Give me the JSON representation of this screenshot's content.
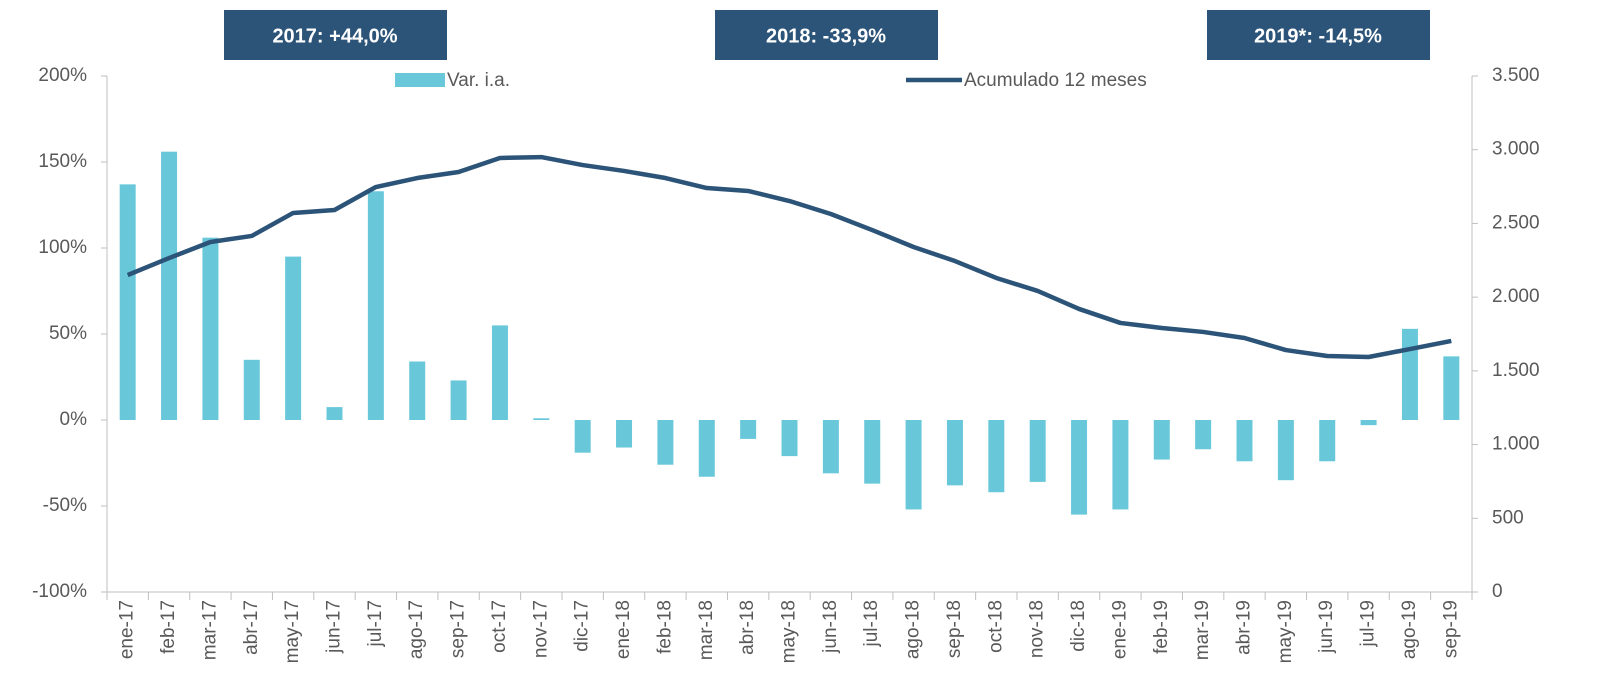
{
  "chart_data": {
    "type": "bar-line",
    "annotations": [
      "2017:  +44,0%",
      "2018:  -33,9%",
      "2019*:  -14,5%"
    ],
    "categories": [
      "ene-17",
      "feb-17",
      "mar-17",
      "abr-17",
      "may-17",
      "jun-17",
      "jul-17",
      "ago-17",
      "sep-17",
      "oct-17",
      "nov-17",
      "dic-17",
      "ene-18",
      "feb-18",
      "mar-18",
      "abr-18",
      "may-18",
      "jun-18",
      "jul-18",
      "ago-18",
      "sep-18",
      "oct-18",
      "nov-18",
      "dic-18",
      "ene-19",
      "feb-19",
      "mar-19",
      "abr-19",
      "may-19",
      "jun-19",
      "jul-19",
      "ago-19",
      "sep-19"
    ],
    "series": [
      {
        "name": "Var. i.a.",
        "type": "bar",
        "color": "#68c8da",
        "values": [
          137,
          156,
          106,
          35,
          95,
          7.5,
          133,
          34,
          23,
          55,
          1,
          -19,
          -16,
          -26,
          -33,
          -11,
          -21,
          -31,
          -37,
          -52,
          -38,
          -42,
          -36,
          -55,
          -52,
          -23,
          -17,
          -24,
          -35,
          -24,
          -3,
          53,
          37
        ]
      },
      {
        "name": "Acumulado 12 meses",
        "type": "line",
        "axis": "y2",
        "color": "#2c5478",
        "values": [
          2150,
          2265,
          2374,
          2415,
          2571,
          2591,
          2747,
          2808,
          2849,
          2944,
          2950,
          2896,
          2856,
          2808,
          2740,
          2720,
          2652,
          2564,
          2455,
          2340,
          2245,
          2130,
          2042,
          1920,
          1825,
          1791,
          1764,
          1723,
          1641,
          1601,
          1594,
          1648,
          1703
        ]
      }
    ],
    "ylim": [
      -100,
      200
    ],
    "yticks": [
      {
        "value": -100,
        "label": "-100%"
      },
      {
        "value": -50,
        "label": "-50%"
      },
      {
        "value": 0,
        "label": "0%"
      },
      {
        "value": 50,
        "label": "50%"
      },
      {
        "value": 100,
        "label": "100%"
      },
      {
        "value": 150,
        "label": "150%"
      },
      {
        "value": 200,
        "label": "200%"
      }
    ],
    "y2lim": [
      0,
      3500
    ],
    "y2ticks": [
      0,
      500,
      {
        "value": 1000,
        "label": "1.000"
      },
      {
        "value": 1500,
        "label": "1.500"
      },
      {
        "value": 2000,
        "label": "2.000"
      },
      {
        "value": 2500,
        "label": "2.500"
      },
      {
        "value": 3000,
        "label": "3.000"
      },
      {
        "value": 3500,
        "label": "3.500"
      }
    ],
    "legend": "top"
  }
}
